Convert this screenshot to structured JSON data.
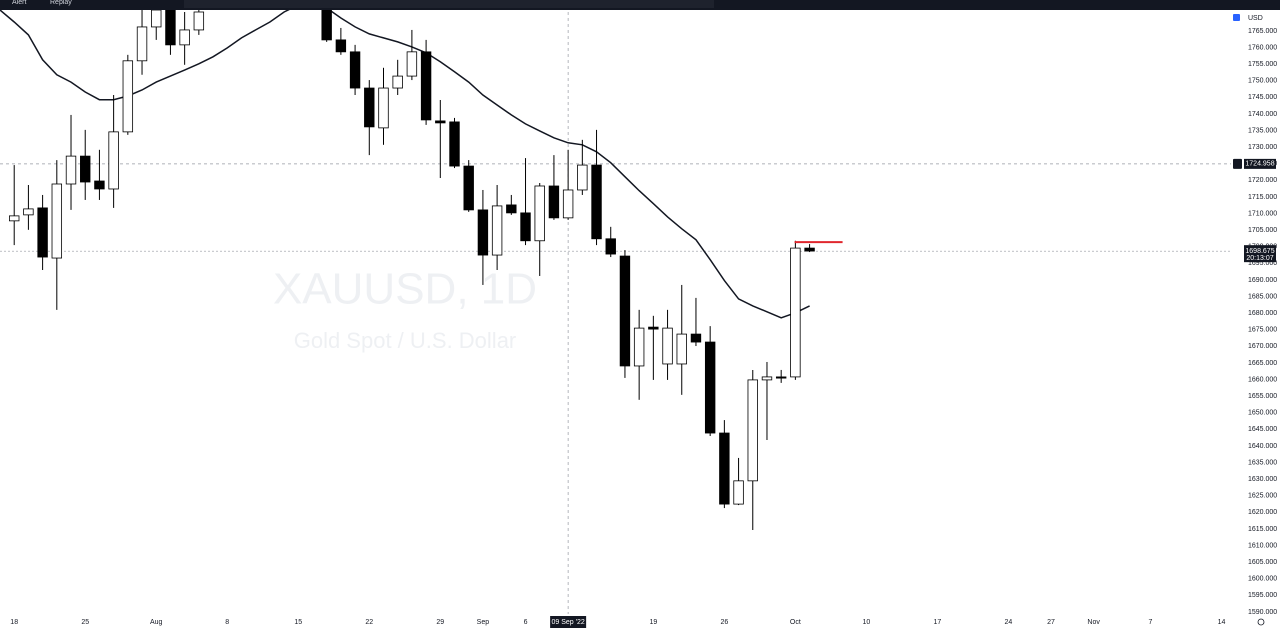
{
  "chart_data": {
    "type": "candlestick",
    "watermark_title": "XAUUSD, 1D",
    "watermark_subtitle": "Gold Spot / U.S. Dollar",
    "currency": "USD",
    "toolbar_items": [
      "Alert",
      "Replay"
    ],
    "x": [
      0,
      1,
      2,
      3,
      4,
      5,
      6,
      7,
      8,
      9,
      10,
      11,
      12,
      13,
      22,
      23,
      24,
      25,
      26,
      27,
      28,
      29,
      30,
      31,
      32,
      33,
      34,
      35,
      36,
      37,
      38,
      39,
      40,
      41,
      42,
      43,
      44,
      45,
      46,
      47,
      48,
      49,
      50,
      51,
      52,
      53,
      54,
      55,
      56
    ],
    "open": [
      1707.8,
      1709.6,
      1711.7,
      1696.6,
      1718.9,
      1727.3,
      1719.8,
      1717.4,
      1734.6,
      1756.0,
      1766.2,
      1772.0,
      1760.8,
      1765.3,
      1775.0,
      1762.3,
      1758.7,
      1747.8,
      1735.8,
      1747.8,
      1751.4,
      1758.7,
      1737.9,
      1737.6,
      1724.3,
      1711.1,
      1697.5,
      1712.6,
      1710.2,
      1701.8,
      1718.3,
      1708.7,
      1717.1,
      1724.6,
      1702.4,
      1697.2,
      1664.1,
      1675.8,
      1664.7,
      1664.7,
      1673.7,
      1671.3,
      1643.9,
      1622.5,
      1629.5,
      1659.9,
      1660.8,
      1660.8,
      1699.6
    ],
    "high": [
      1724.6,
      1718.6,
      1715.6,
      1726.1,
      1739.7,
      1735.2,
      1729.2,
      1745.7,
      1757.8,
      1772.8,
      1775.8,
      1774.3,
      1770.7,
      1774.3,
      1778.0,
      1765.9,
      1760.8,
      1750.2,
      1753.9,
      1756.3,
      1765.3,
      1762.3,
      1744.2,
      1738.8,
      1726.1,
      1717.1,
      1718.6,
      1715.6,
      1726.7,
      1719.2,
      1727.6,
      1729.2,
      1732.2,
      1735.2,
      1706.0,
      1699.0,
      1681.0,
      1679.2,
      1681.0,
      1688.5,
      1684.6,
      1676.1,
      1647.8,
      1636.4,
      1662.9,
      1665.3,
      1662.9,
      1701.8,
      1700.8
    ],
    "low": [
      1700.5,
      1705.1,
      1693.0,
      1681.0,
      1711.1,
      1714.1,
      1714.1,
      1711.7,
      1733.7,
      1751.8,
      1762.3,
      1757.8,
      1754.8,
      1763.8,
      1761.7,
      1757.8,
      1745.7,
      1727.6,
      1730.7,
      1745.7,
      1750.2,
      1736.7,
      1720.7,
      1723.7,
      1710.5,
      1688.5,
      1693.0,
      1709.6,
      1700.5,
      1691.2,
      1708.1,
      1708.1,
      1715.6,
      1700.5,
      1696.9,
      1660.5,
      1653.9,
      1659.9,
      1659.9,
      1655.4,
      1670.1,
      1643.0,
      1621.3,
      1622.2,
      1614.7,
      1641.8,
      1659.0,
      1659.9,
      1698.4
    ],
    "close": [
      1709.3,
      1711.4,
      1696.9,
      1718.9,
      1727.3,
      1719.5,
      1717.4,
      1734.6,
      1756.0,
      1766.2,
      1771.3,
      1760.8,
      1765.3,
      1770.7,
      1762.3,
      1758.7,
      1747.8,
      1736.1,
      1747.8,
      1751.4,
      1758.7,
      1738.2,
      1737.3,
      1724.3,
      1711.1,
      1697.5,
      1712.3,
      1710.2,
      1701.8,
      1718.3,
      1708.7,
      1717.1,
      1724.6,
      1702.4,
      1697.8,
      1664.1,
      1675.5,
      1675.2,
      1675.5,
      1673.7,
      1671.3,
      1643.9,
      1622.5,
      1629.5,
      1659.9,
      1660.8,
      1660.5,
      1699.6,
      1698.7
    ],
    "up_color": "#ffffff",
    "down_color": "#000000",
    "ma": {
      "color": "#131722",
      "x": [
        -1,
        0,
        1,
        2,
        3,
        4,
        5,
        6,
        7,
        8,
        9,
        10,
        11,
        12,
        13,
        14,
        15,
        16,
        17,
        18,
        19,
        20,
        21,
        22,
        23,
        24,
        25,
        26,
        27,
        28,
        29,
        30,
        31,
        32,
        33,
        34,
        35,
        36,
        37,
        38,
        39,
        40,
        41,
        42,
        43,
        44,
        45,
        46,
        47,
        48,
        49,
        50,
        51,
        52,
        53,
        54,
        55,
        56
      ],
      "values": [
        1771.3,
        1767.7,
        1763.8,
        1756.3,
        1751.8,
        1749.6,
        1746.6,
        1744.3,
        1744.3,
        1745.4,
        1747.2,
        1749.6,
        1751.4,
        1753.2,
        1755.1,
        1757.2,
        1759.9,
        1762.9,
        1765.3,
        1767.7,
        1770.7,
        1772.8,
        1773.7,
        1771.9,
        1768.9,
        1766.2,
        1764.1,
        1762.9,
        1761.7,
        1760.2,
        1758.4,
        1755.7,
        1752.7,
        1749.6,
        1745.7,
        1742.7,
        1739.7,
        1737.0,
        1734.9,
        1732.8,
        1731.3,
        1730.7,
        1728.6,
        1725.3,
        1721.1,
        1716.9,
        1713.0,
        1709.0,
        1705.4,
        1702.1,
        1696.1,
        1689.8,
        1684.3,
        1682.2,
        1680.4,
        1678.6,
        1680.1,
        1682.2
      ]
    },
    "level_line": {
      "value": 1701.4,
      "color": "#e0262d"
    },
    "last_price": {
      "value": 1698.675,
      "countdown": "20:13:07"
    },
    "crosshair": {
      "price": 1724.958,
      "x": {
        "value": 39,
        "label": "09 Sep '22"
      }
    },
    "xlim": [
      -1,
      85.6
    ],
    "ylim": [
      1590,
      1770.7
    ],
    "xticks": [
      {
        "value": 0,
        "label": "18"
      },
      {
        "value": 5,
        "label": "25"
      },
      {
        "value": 10,
        "label": "Aug"
      },
      {
        "value": 15,
        "label": "8"
      },
      {
        "value": 20,
        "label": "15"
      },
      {
        "value": 25,
        "label": "22"
      },
      {
        "value": 30,
        "label": "29"
      },
      {
        "value": 33,
        "label": "Sep"
      },
      {
        "value": 36,
        "label": "6"
      },
      {
        "value": 45,
        "label": "19"
      },
      {
        "value": 50,
        "label": "26"
      },
      {
        "value": 55,
        "label": "Oct"
      },
      {
        "value": 60,
        "label": "10"
      },
      {
        "value": 65,
        "label": "17"
      },
      {
        "value": 70,
        "label": "24"
      },
      {
        "value": 73,
        "label": "27"
      },
      {
        "value": 76,
        "label": "Nov"
      },
      {
        "value": 80,
        "label": "7"
      },
      {
        "value": 85,
        "label": "14"
      }
    ],
    "yticks": [
      {
        "value": 1590,
        "label": "1590.000"
      },
      {
        "value": 1595,
        "label": "1595.000"
      },
      {
        "value": 1600,
        "label": "1600.000"
      },
      {
        "value": 1605,
        "label": "1605.000"
      },
      {
        "value": 1610,
        "label": "1610.000"
      },
      {
        "value": 1615,
        "label": "1615.000"
      },
      {
        "value": 1620,
        "label": "1620.000"
      },
      {
        "value": 1625,
        "label": "1625.000"
      },
      {
        "value": 1630,
        "label": "1630.000"
      },
      {
        "value": 1635,
        "label": "1635.000"
      },
      {
        "value": 1640,
        "label": "1640.000"
      },
      {
        "value": 1645,
        "label": "1645.000"
      },
      {
        "value": 1650,
        "label": "1650.000"
      },
      {
        "value": 1655,
        "label": "1655.000"
      },
      {
        "value": 1660,
        "label": "1660.000"
      },
      {
        "value": 1665,
        "label": "1665.000"
      },
      {
        "value": 1670,
        "label": "1670.000"
      },
      {
        "value": 1675,
        "label": "1675.000"
      },
      {
        "value": 1680,
        "label": "1680.000"
      },
      {
        "value": 1685,
        "label": "1685.000"
      },
      {
        "value": 1690,
        "label": "1690.000"
      },
      {
        "value": 1695,
        "label": "1695.000"
      },
      {
        "value": 1700,
        "label": "1700.000"
      },
      {
        "value": 1705,
        "label": "1705.000"
      },
      {
        "value": 1710,
        "label": "1710.000"
      },
      {
        "value": 1715,
        "label": "1715.000"
      },
      {
        "value": 1720,
        "label": "1720.000"
      },
      {
        "value": 1725,
        "label": "1725.000"
      },
      {
        "value": 1730,
        "label": "1730.000"
      },
      {
        "value": 1735,
        "label": "1735.000"
      },
      {
        "value": 1740,
        "label": "1740.000"
      },
      {
        "value": 1745,
        "label": "1745.000"
      },
      {
        "value": 1750,
        "label": "1750.000"
      },
      {
        "value": 1755,
        "label": "1755.000"
      },
      {
        "value": 1760,
        "label": "1760.000"
      },
      {
        "value": 1765,
        "label": "1765.000"
      }
    ]
  }
}
